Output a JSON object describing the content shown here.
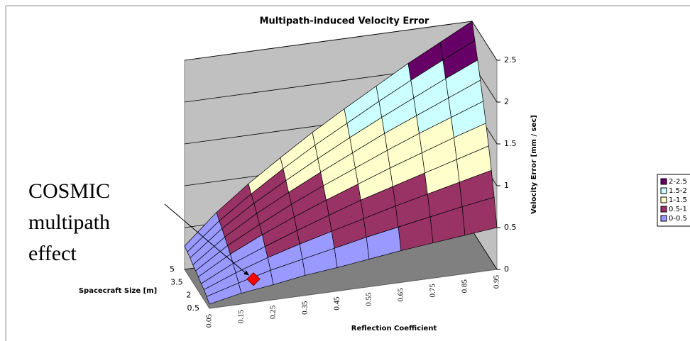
{
  "chart_data": {
    "type": "surface",
    "title": "Multipath-induced Velocity Error",
    "x_label": "Reflection Coefficient",
    "depth_label": "Spacecraft Size [m]",
    "z_label": "Velocity Error [mm / sec]",
    "categories": [
      0.05,
      0.15,
      0.25,
      0.35,
      0.45,
      0.55,
      0.65,
      0.75,
      0.85,
      0.95
    ],
    "depth": [
      0.5,
      null,
      null,
      2,
      null,
      null,
      3.5,
      null,
      null,
      5
    ],
    "values": [
      [
        0.05,
        0.13,
        0.18,
        0.24,
        0.28,
        0.33,
        0.38,
        0.42,
        0.46,
        0.5
      ],
      [
        0.09,
        0.2,
        0.3,
        0.38,
        0.46,
        0.54,
        0.61,
        0.68,
        0.75,
        0.81
      ],
      [
        0.12,
        0.27,
        0.4,
        0.51,
        0.61,
        0.71,
        0.81,
        0.9,
        0.99,
        1.08
      ],
      [
        0.14,
        0.33,
        0.48,
        0.62,
        0.75,
        0.88,
        0.99,
        1.1,
        1.21,
        1.32
      ],
      [
        0.17,
        0.39,
        0.57,
        0.73,
        0.88,
        1.02,
        1.16,
        1.29,
        1.42,
        1.54
      ],
      [
        0.19,
        0.44,
        0.64,
        0.83,
        1.0,
        1.16,
        1.32,
        1.47,
        1.61,
        1.75
      ],
      [
        0.21,
        0.49,
        0.72,
        0.92,
        1.11,
        1.29,
        1.47,
        1.63,
        1.79,
        1.95
      ],
      [
        0.24,
        0.54,
        0.79,
        1.01,
        1.22,
        1.42,
        1.61,
        1.79,
        1.97,
        2.14
      ],
      [
        0.26,
        0.58,
        0.85,
        1.1,
        1.33,
        1.54,
        1.75,
        1.95,
        2.14,
        2.32
      ],
      [
        0.28,
        0.63,
        0.92,
        1.18,
        1.43,
        1.66,
        1.88,
        2.1,
        2.3,
        2.5
      ]
    ],
    "zlim": [
      0,
      2.5
    ],
    "zticks": [
      0,
      0.5,
      1,
      1.5,
      2,
      2.5
    ],
    "bands": [
      {
        "name": "0-0.5",
        "color": "#9999ff"
      },
      {
        "name": "0.5-1",
        "color": "#993366"
      },
      {
        "name": "1-1.5",
        "color": "#ffffcc"
      },
      {
        "name": "1.5-2",
        "color": "#ccffff"
      },
      {
        "name": "2-2.5",
        "color": "#660066"
      }
    ],
    "annotation": [
      "COSMIC",
      "multipath",
      "effect"
    ],
    "marker": {
      "x": 0.2,
      "size": 1.2,
      "value": 0.2,
      "color": "#ff0000"
    }
  }
}
